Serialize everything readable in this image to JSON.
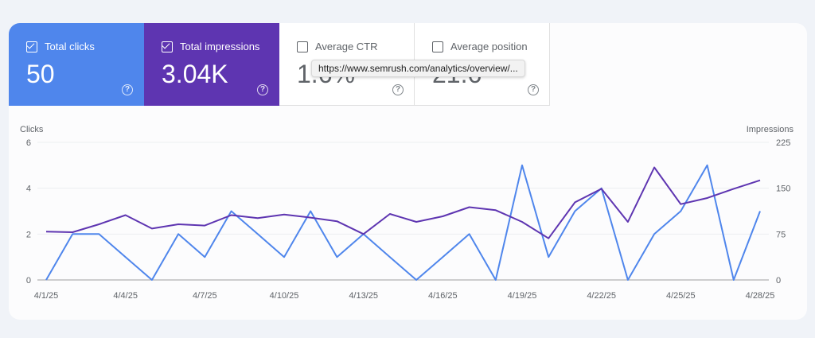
{
  "metrics": {
    "clicks": {
      "label": "Total clicks",
      "value": "50",
      "checked": true
    },
    "impressions": {
      "label": "Total impressions",
      "value": "3.04K",
      "checked": true
    },
    "ctr": {
      "label": "Average CTR",
      "value": "1.6%",
      "checked": false
    },
    "position": {
      "label": "Average position",
      "value": "21.6",
      "checked": false
    }
  },
  "tooltip": {
    "text": "https://www.semrush.com/analytics/overview/..."
  },
  "colors": {
    "clicks": "#4f86ec",
    "impressions": "#5e35b1"
  },
  "chart_data": {
    "type": "line",
    "ylabel_left": "Clicks",
    "ylabel_right": "Impressions",
    "yticks_left": [
      "0",
      "2",
      "4",
      "6"
    ],
    "yticks_right": [
      "0",
      "75",
      "150",
      "225"
    ],
    "ylim_left": [
      0,
      6
    ],
    "ylim_right": [
      0,
      225
    ],
    "grid": true,
    "x": [
      "4/1/25",
      "4/2/25",
      "4/3/25",
      "4/4/25",
      "4/5/25",
      "4/6/25",
      "4/7/25",
      "4/8/25",
      "4/9/25",
      "4/10/25",
      "4/11/25",
      "4/12/25",
      "4/13/25",
      "4/14/25",
      "4/15/25",
      "4/16/25",
      "4/17/25",
      "4/18/25",
      "4/19/25",
      "4/20/25",
      "4/21/25",
      "4/22/25",
      "4/23/25",
      "4/24/25",
      "4/25/25",
      "4/26/25",
      "4/27/25",
      "4/28/25"
    ],
    "xtick_labels": [
      "4/1/25",
      "4/4/25",
      "4/7/25",
      "4/10/25",
      "4/13/25",
      "4/16/25",
      "4/19/25",
      "4/22/25",
      "4/25/25",
      "4/28/25"
    ],
    "series": [
      {
        "name": "Clicks",
        "axis": "left",
        "values": [
          0,
          2,
          2,
          1,
          0,
          2,
          1,
          3,
          2,
          1,
          3,
          1,
          2,
          1,
          0,
          1,
          2,
          0,
          5,
          1,
          3,
          4,
          0,
          2,
          3,
          5,
          0,
          3
        ]
      },
      {
        "name": "Impressions",
        "axis": "right",
        "values": [
          79,
          78,
          91,
          106,
          84,
          91,
          89,
          106,
          101,
          107,
          102,
          96,
          75,
          108,
          95,
          104,
          119,
          114,
          95,
          68,
          127,
          149,
          95,
          184,
          124,
          134,
          149,
          163
        ]
      }
    ]
  }
}
